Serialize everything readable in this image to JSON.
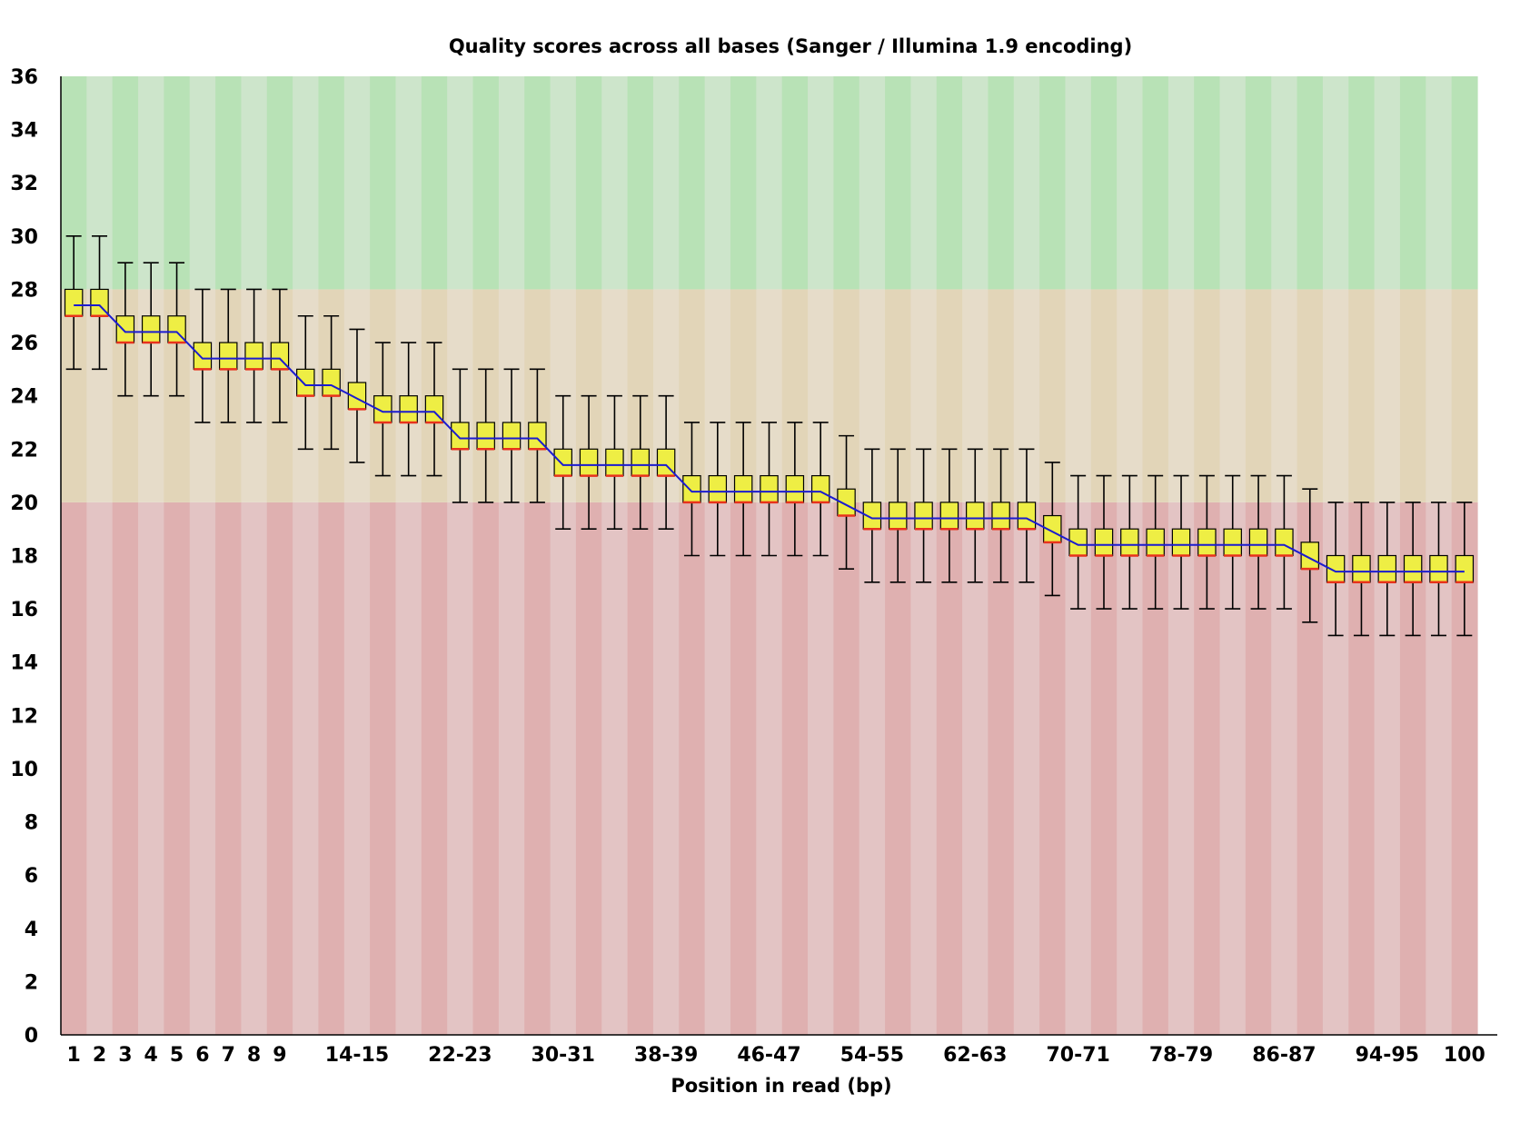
{
  "chart_data": {
    "type": "boxplot",
    "title": "Quality scores across all bases (Sanger / Illumina 1.9 encoding)",
    "xlabel": "Position in read (bp)",
    "ylabel": "",
    "ylim": [
      0,
      36
    ],
    "y_ticks": [
      0,
      2,
      4,
      6,
      8,
      10,
      12,
      14,
      16,
      18,
      20,
      22,
      24,
      26,
      28,
      30,
      32,
      34,
      36
    ],
    "quality_bands": [
      {
        "name": "poor",
        "from": 0,
        "to": 20,
        "colors": [
          "#dfb0b0",
          "#e3c4c4"
        ]
      },
      {
        "name": "reasonable",
        "from": 20,
        "to": 28,
        "colors": [
          "#e2d5b8",
          "#e6dcc9"
        ]
      },
      {
        "name": "good",
        "from": 28,
        "to": 36,
        "colors": [
          "#b8e2b6",
          "#cde5cb"
        ]
      }
    ],
    "colors": {
      "box": "#eeee44",
      "median": "#e8331d",
      "mean_line": "#1b1bd0",
      "whisker": "#000000"
    },
    "categories": [
      "1",
      "2",
      "3",
      "4",
      "5",
      "6",
      "7",
      "8",
      "9",
      "10-11",
      "12-13",
      "14-15",
      "16-17",
      "18-19",
      "20-21",
      "22-23",
      "24-25",
      "26-27",
      "28-29",
      "30-31",
      "32-33",
      "34-35",
      "36-37",
      "38-39",
      "40-41",
      "42-43",
      "44-45",
      "46-47",
      "48-49",
      "50-51",
      "52-53",
      "54-55",
      "56-57",
      "58-59",
      "60-61",
      "62-63",
      "64-65",
      "66-67",
      "68-69",
      "70-71",
      "72-73",
      "74-75",
      "76-77",
      "78-79",
      "80-81",
      "82-83",
      "84-85",
      "86-87",
      "88-89",
      "90-91",
      "92-93",
      "94-95",
      "96-97",
      "98-99",
      "100"
    ],
    "x_tick_labels": [
      "1",
      "2",
      "3",
      "4",
      "5",
      "6",
      "7",
      "8",
      "9",
      "",
      "",
      "14-15",
      "",
      "",
      "",
      "22-23",
      "",
      "",
      "",
      "30-31",
      "",
      "",
      "",
      "38-39",
      "",
      "",
      "",
      "46-47",
      "",
      "",
      "",
      "54-55",
      "",
      "",
      "",
      "62-63",
      "",
      "",
      "",
      "70-71",
      "",
      "",
      "",
      "78-79",
      "",
      "",
      "",
      "86-87",
      "",
      "",
      "",
      "94-95",
      "",
      "",
      "100"
    ],
    "series": [
      {
        "name": "upper_whisker",
        "values": [
          30,
          30,
          29,
          29,
          29,
          28,
          28,
          28,
          28,
          27,
          27,
          26.5,
          26,
          26,
          26,
          25,
          25,
          25,
          25,
          24,
          24,
          24,
          24,
          24,
          23,
          23,
          23,
          23,
          23,
          23,
          22.5,
          22,
          22,
          22,
          22,
          22,
          22,
          22,
          21.5,
          21,
          21,
          21,
          21,
          21,
          21,
          21,
          21,
          21,
          20.5,
          20,
          20,
          20,
          20,
          20,
          20
        ]
      },
      {
        "name": "upper_quartile",
        "values": [
          28,
          28,
          27,
          27,
          27,
          26,
          26,
          26,
          26,
          25,
          25,
          24.5,
          24,
          24,
          24,
          23,
          23,
          23,
          23,
          22,
          22,
          22,
          22,
          22,
          21,
          21,
          21,
          21,
          21,
          21,
          20.5,
          20,
          20,
          20,
          20,
          20,
          20,
          20,
          19.5,
          19,
          19,
          19,
          19,
          19,
          19,
          19,
          19,
          19,
          18.5,
          18,
          18,
          18,
          18,
          18,
          18
        ]
      },
      {
        "name": "median",
        "values": [
          27,
          27,
          26,
          26,
          26,
          25,
          25,
          25,
          25,
          24,
          24,
          23.5,
          23,
          23,
          23,
          22,
          22,
          22,
          22,
          21,
          21,
          21,
          21,
          21,
          20,
          20,
          20,
          20,
          20,
          20,
          19.5,
          19,
          19,
          19,
          19,
          19,
          19,
          19,
          18.5,
          18,
          18,
          18,
          18,
          18,
          18,
          18,
          18,
          18,
          17.5,
          17,
          17,
          17,
          17,
          17,
          17
        ]
      },
      {
        "name": "lower_quartile",
        "values": [
          27,
          27,
          26,
          26,
          26,
          25,
          25,
          25,
          25,
          24,
          24,
          23.5,
          23,
          23,
          23,
          22,
          22,
          22,
          22,
          21,
          21,
          21,
          21,
          21,
          20,
          20,
          20,
          20,
          20,
          20,
          19.5,
          19,
          19,
          19,
          19,
          19,
          19,
          19,
          18.5,
          18,
          18,
          18,
          18,
          18,
          18,
          18,
          18,
          18,
          17.5,
          17,
          17,
          17,
          17,
          17,
          17
        ]
      },
      {
        "name": "lower_whisker",
        "values": [
          25,
          25,
          24,
          24,
          24,
          23,
          23,
          23,
          23,
          22,
          22,
          21.5,
          21,
          21,
          21,
          20,
          20,
          20,
          20,
          19,
          19,
          19,
          19,
          19,
          18,
          18,
          18,
          18,
          18,
          18,
          17.5,
          17,
          17,
          17,
          17,
          17,
          17,
          17,
          16.5,
          16,
          16,
          16,
          16,
          16,
          16,
          16,
          16,
          16,
          15.5,
          15,
          15,
          15,
          15,
          15,
          15
        ]
      },
      {
        "name": "mean",
        "values": [
          27.4,
          27.4,
          26.4,
          26.4,
          26.4,
          25.4,
          25.4,
          25.4,
          25.4,
          24.4,
          24.4,
          23.9,
          23.4,
          23.4,
          23.4,
          22.4,
          22.4,
          22.4,
          22.4,
          21.4,
          21.4,
          21.4,
          21.4,
          21.4,
          20.4,
          20.4,
          20.4,
          20.4,
          20.4,
          20.4,
          19.9,
          19.4,
          19.4,
          19.4,
          19.4,
          19.4,
          19.4,
          19.4,
          18.9,
          18.4,
          18.4,
          18.4,
          18.4,
          18.4,
          18.4,
          18.4,
          18.4,
          18.4,
          17.9,
          17.4,
          17.4,
          17.4,
          17.4,
          17.4,
          17.4
        ]
      }
    ]
  }
}
